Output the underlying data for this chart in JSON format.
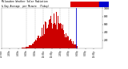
{
  "title": "Milwaukee Weather Solar Radiation & Day Average per Minute (Today)",
  "background_color": "#ffffff",
  "plot_bg_color": "#ffffff",
  "bar_color": "#cc0000",
  "current_line_color": "#0000cc",
  "legend_red_color": "#dd0000",
  "legend_blue_color": "#0000cc",
  "grid_color": "#888888",
  "text_color": "#000000",
  "num_points": 1440,
  "sunrise": 290,
  "sunset": 1090,
  "peak": 740,
  "peak_value": 920,
  "sigma": 155,
  "current_minute": 1060,
  "ylim": [
    0,
    1000
  ],
  "yticks": [
    200,
    400,
    600,
    800,
    1000
  ],
  "grid_x": [
    360,
    480,
    600,
    720,
    840,
    960
  ],
  "xtick_step": 120
}
